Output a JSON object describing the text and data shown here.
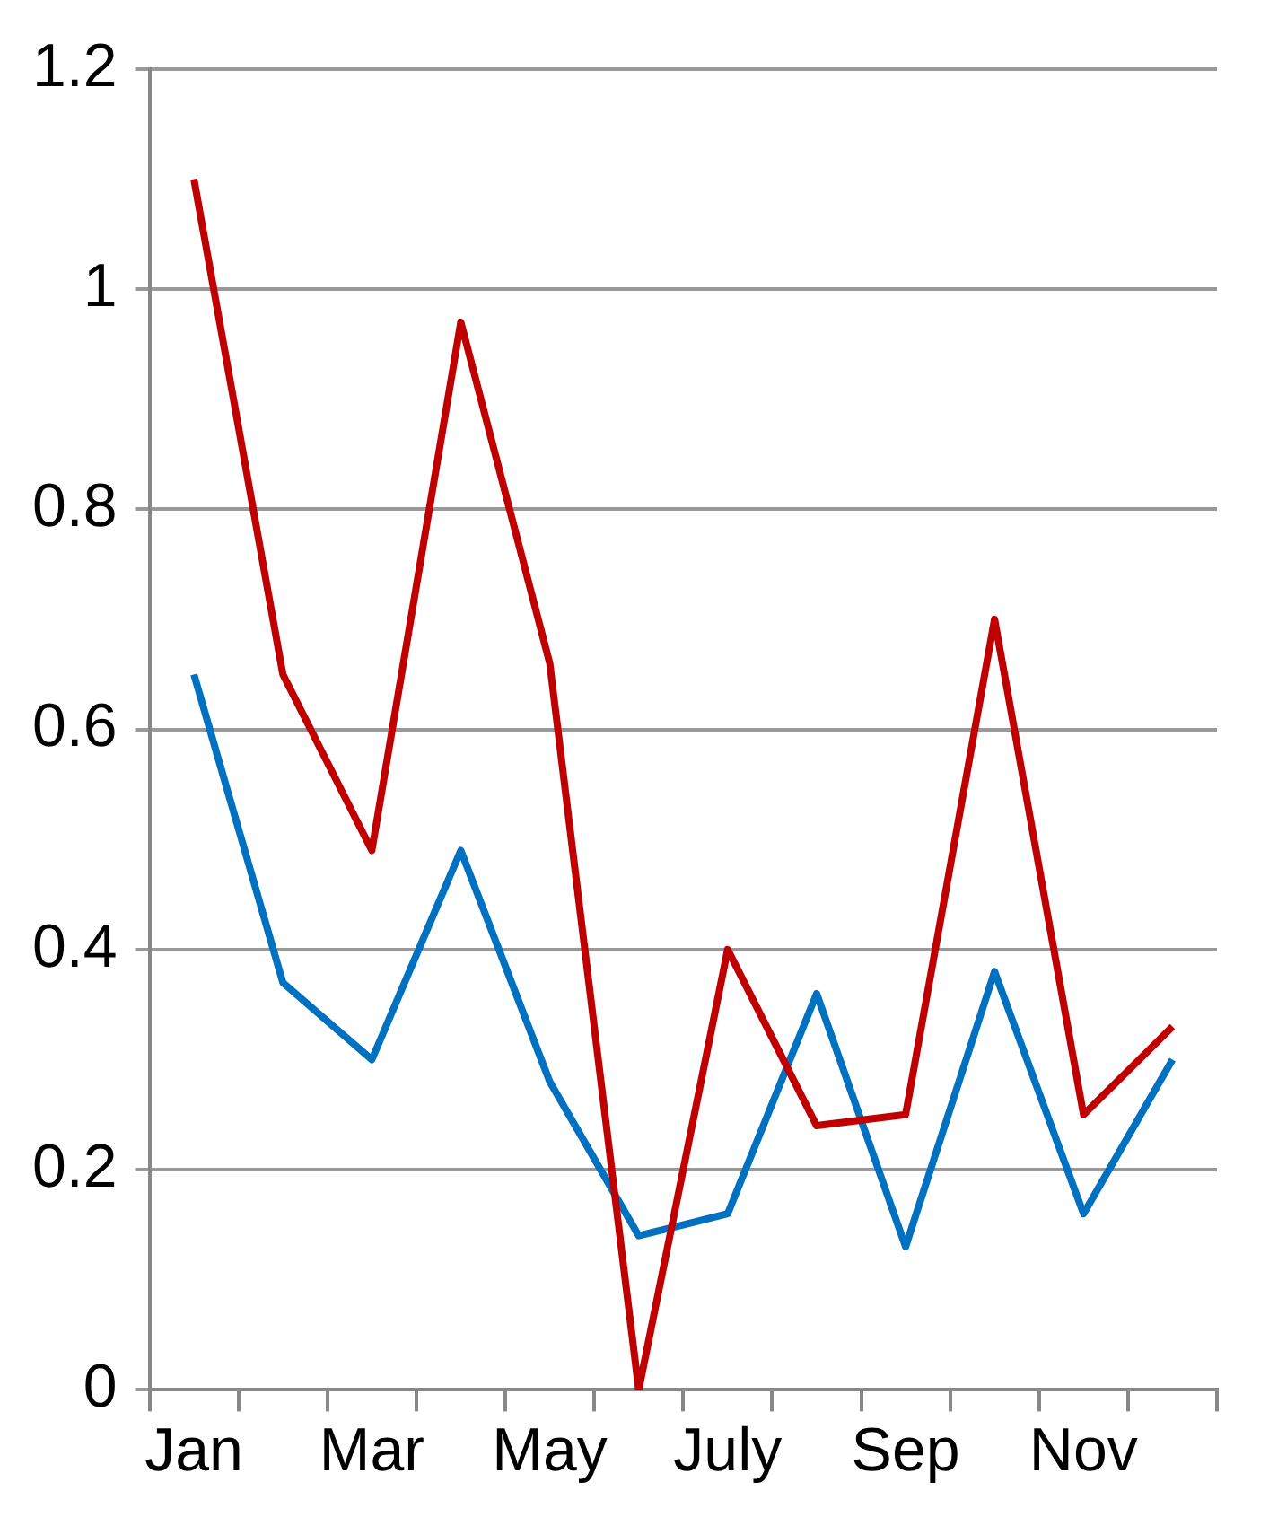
{
  "chart_data": {
    "type": "line",
    "categories": [
      "Jan",
      null,
      "Mar",
      null,
      "May",
      null,
      "July",
      null,
      "Sep",
      null,
      "Nov",
      null
    ],
    "series": [
      {
        "color": "#c00000",
        "values": [
          1.1,
          0.65,
          0.49,
          0.97,
          0.66,
          0,
          0.4,
          0.24,
          0.25,
          0.7,
          0.25,
          0.33
        ]
      },
      {
        "color": "#0070c0",
        "values": [
          0.65,
          0.37,
          0.3,
          0.49,
          0.28,
          0.14,
          0.16,
          0.36,
          0.13,
          0.38,
          0.16,
          0.3
        ]
      }
    ],
    "ylim": [
      0,
      1.2
    ],
    "yticks": [
      0,
      0.2,
      0.4,
      0.6,
      0.8,
      1,
      1.2
    ],
    "grid": "y",
    "legend": false,
    "marker": "none",
    "line_style": "solid"
  }
}
